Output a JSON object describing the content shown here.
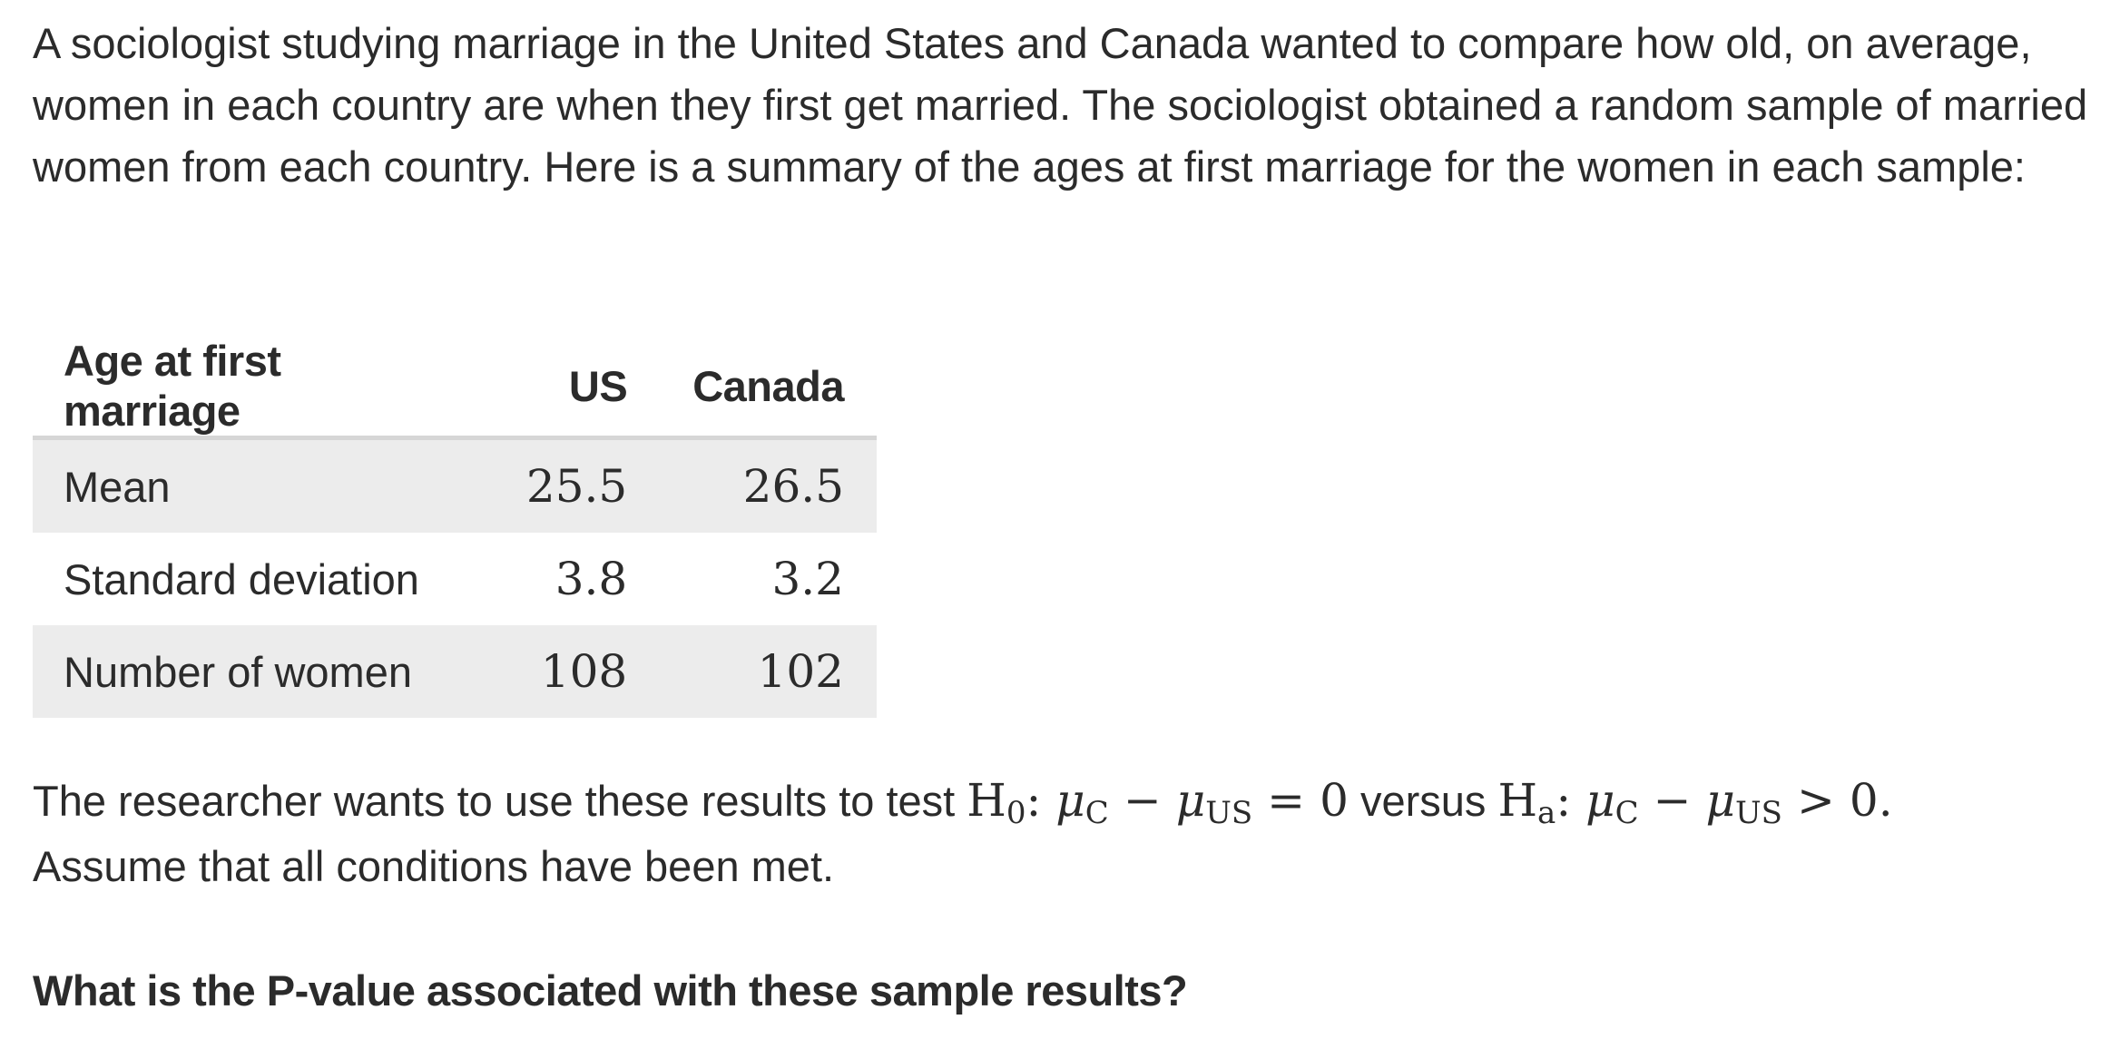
{
  "intro_text": "A sociologist studying marriage in the United States and Canada wanted to compare how old, on average, women in each country are when they first get married. The sociologist obtained a random sample of married women from each country. Here is a summary of the ages at first marriage for the women in each sample:",
  "table": {
    "headers": [
      "Age at first marriage",
      "US",
      "Canada"
    ],
    "rows": [
      {
        "label": "Mean",
        "us": "25.5",
        "canada": "26.5"
      },
      {
        "label": "Standard deviation",
        "us": "3.8",
        "canada": "3.2"
      },
      {
        "label": "Number of women",
        "us": "108",
        "canada": "102"
      }
    ]
  },
  "hypothesis": {
    "lead": "The researcher wants to use these results to test ",
    "h": "H",
    "null_sub": "0",
    "colon": ":",
    "mu": "μ",
    "c_sub": "C",
    "minus": "−",
    "us_sub": "US",
    "equals": "=",
    "zero": "0",
    "versus": " versus ",
    "alt_sub": "a",
    "greater": ">",
    "end_dot": ".",
    "assumption": "Assume that all conditions have been met."
  },
  "question": "What is the P-value associated with these sample results?"
}
